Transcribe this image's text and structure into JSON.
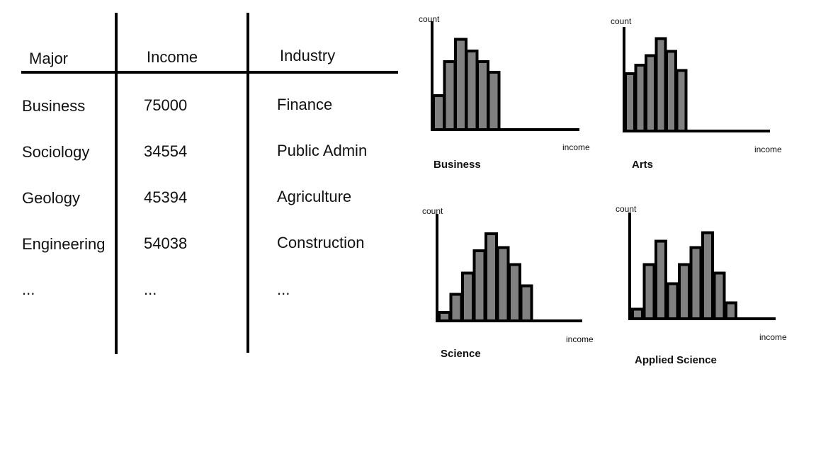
{
  "table": {
    "headers": [
      "Major",
      "Income",
      "Industry"
    ],
    "rows": [
      [
        "Business",
        "75000",
        "Finance"
      ],
      [
        "Sociology",
        "34554",
        "Public Admin"
      ],
      [
        "Geology",
        "45394",
        "Agriculture"
      ],
      [
        "Engineering",
        "54038",
        "Construction"
      ],
      [
        "...",
        "...",
        "..."
      ]
    ]
  },
  "chart_data": [
    {
      "type": "bar",
      "title": "Business",
      "xlabel": "income",
      "ylabel": "count",
      "values": [
        3.2,
        6.4,
        8.5,
        7.4,
        6.4,
        5.4
      ],
      "ylim": [
        0,
        10
      ],
      "grid": false
    },
    {
      "type": "bar",
      "title": "Arts",
      "xlabel": "income",
      "ylabel": "count",
      "values": [
        5.4,
        6.2,
        7.1,
        8.7,
        7.5,
        5.7
      ],
      "ylim": [
        0,
        10
      ],
      "grid": false
    },
    {
      "type": "bar",
      "title": "Science",
      "xlabel": "income",
      "ylabel": "count",
      "values": [
        0.8,
        2.5,
        4.5,
        6.6,
        8.2,
        6.9,
        5.3,
        3.3
      ],
      "ylim": [
        0,
        10
      ],
      "grid": false
    },
    {
      "type": "bar",
      "title": "Applied Science",
      "xlabel": "income",
      "ylabel": "count",
      "values": [
        0.9,
        5.1,
        7.3,
        3.3,
        5.1,
        6.7,
        8.1,
        4.3,
        1.5
      ],
      "ylim": [
        0,
        10
      ],
      "grid": false
    }
  ],
  "colors": {
    "bar_fill": "#808080",
    "stroke": "#000000"
  }
}
